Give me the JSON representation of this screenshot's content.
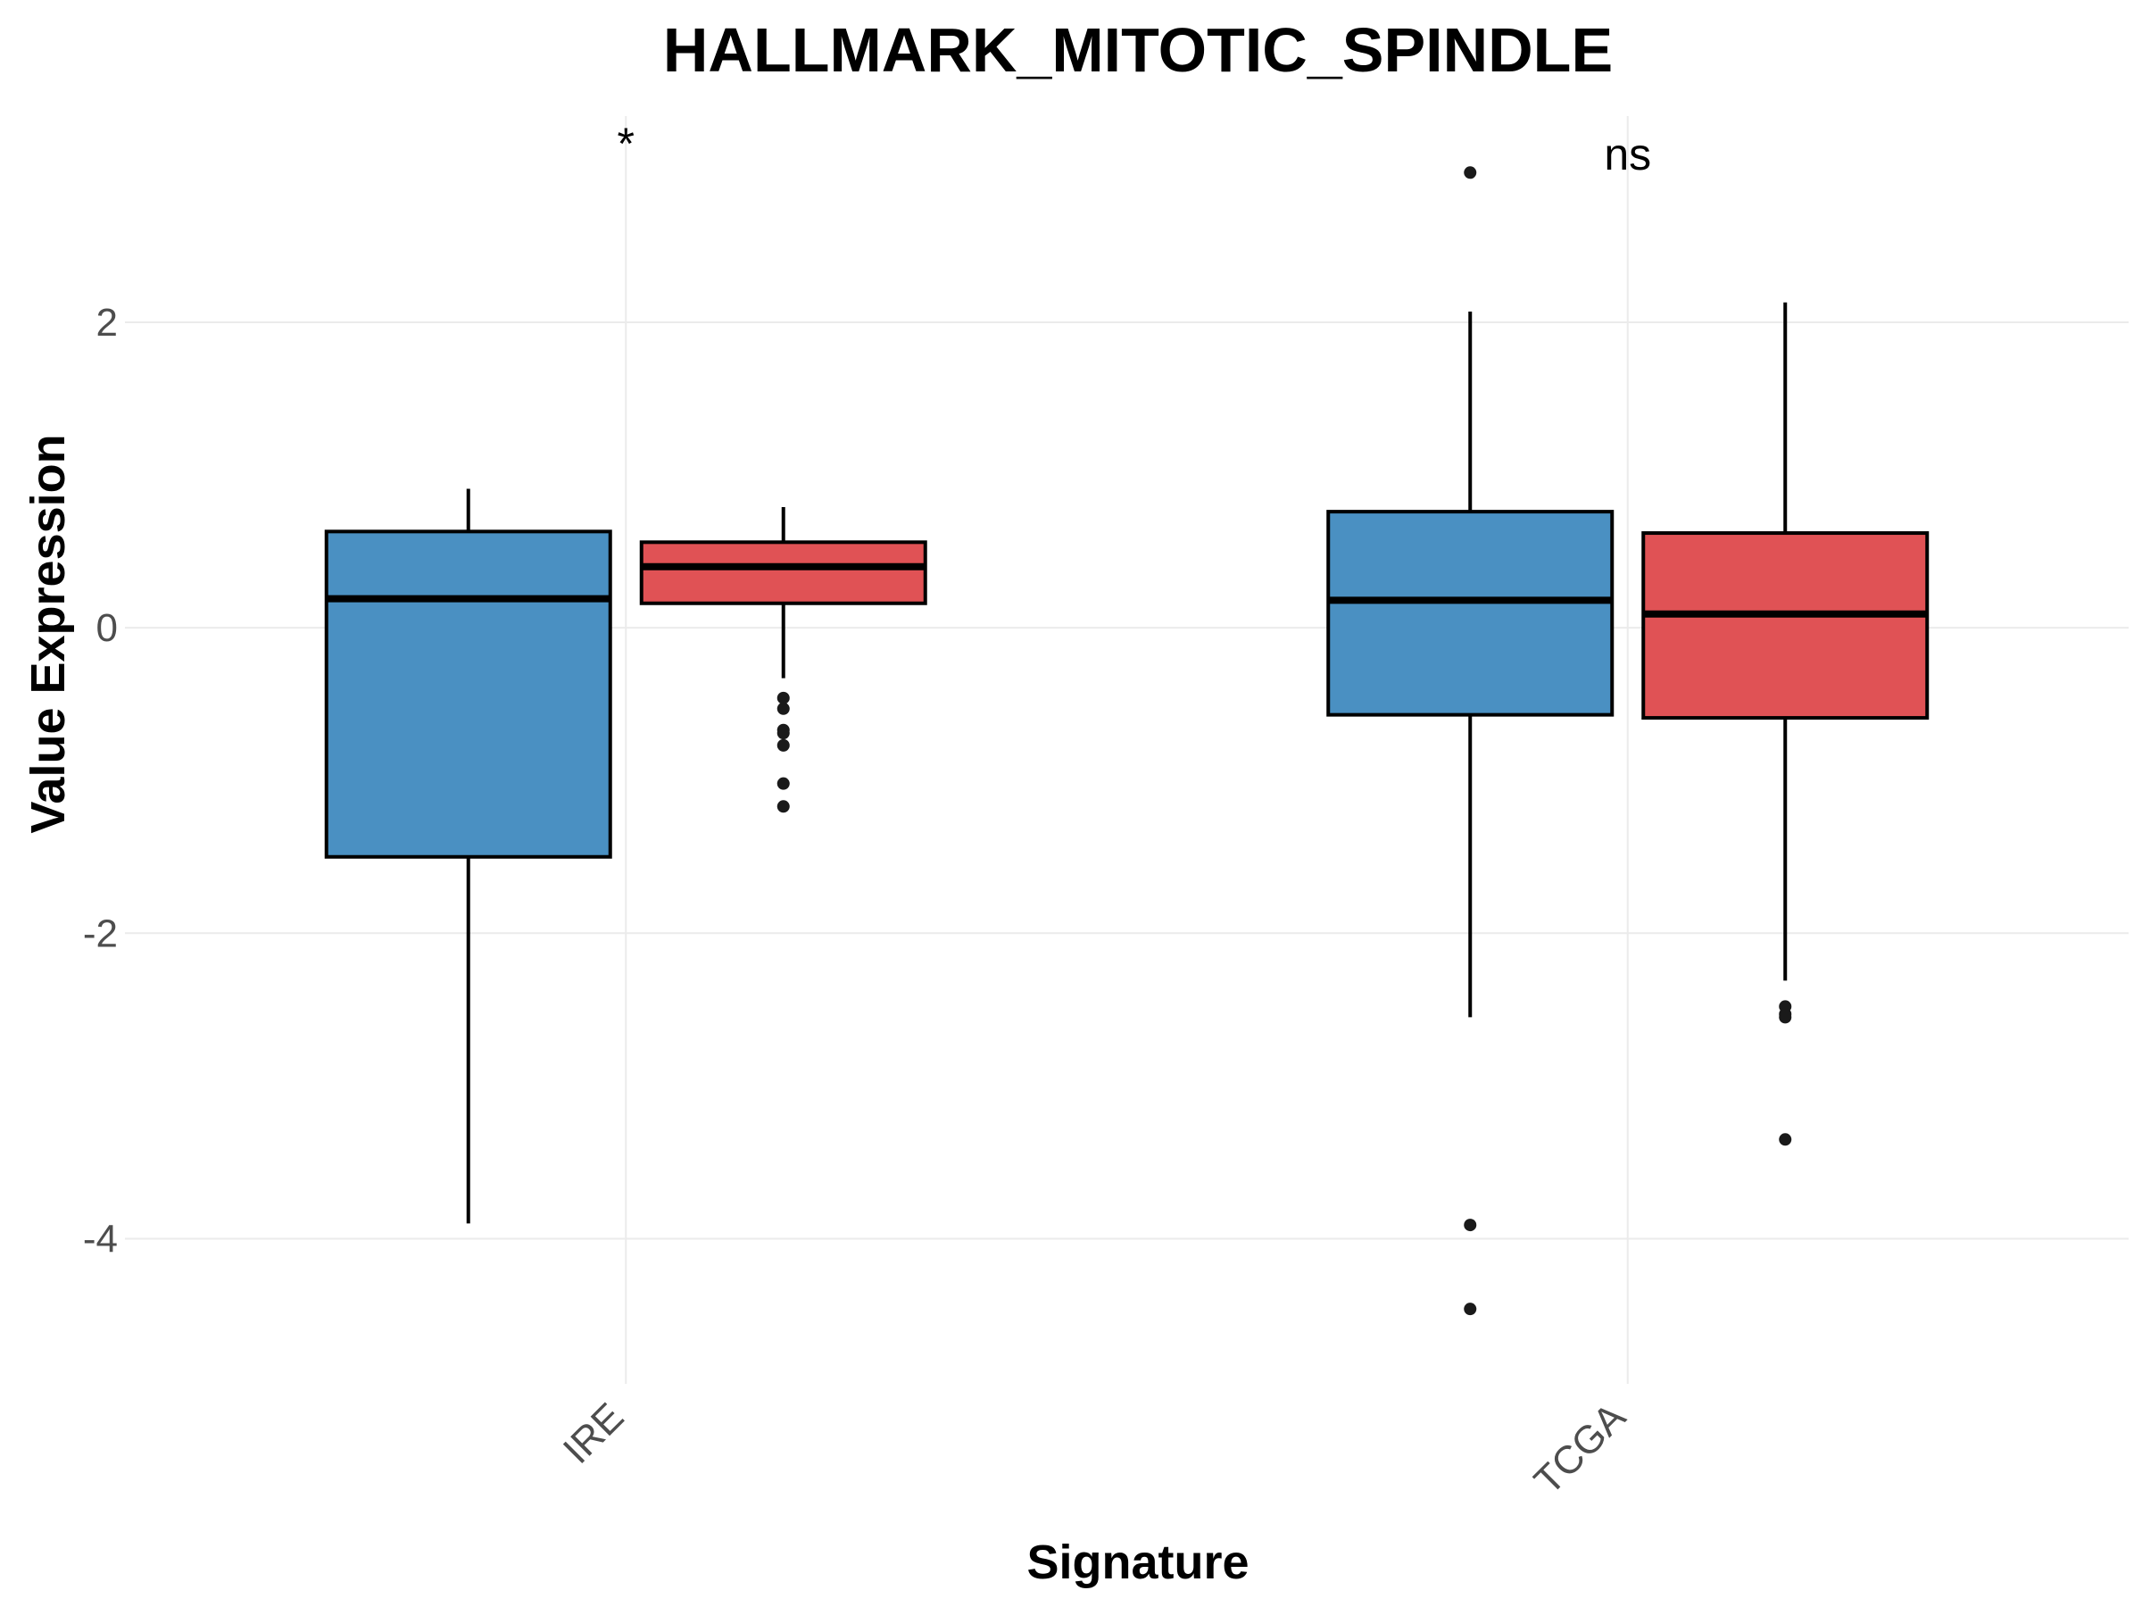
{
  "chart_data": {
    "type": "box",
    "title": "HALLMARK_MITOTIC_SPINDLE",
    "xlabel": "Signature",
    "ylabel": "Value Expression",
    "ylim": [
      -4.95,
      3.35
    ],
    "yticks": [
      -4,
      -2,
      0,
      2
    ],
    "categories": [
      "IRE",
      "TCGA"
    ],
    "grid": true,
    "legend": "none",
    "colors": {
      "blue": "#4a90c2",
      "red": "#e05255"
    },
    "boxes": [
      {
        "category": "IRE",
        "color": "blue",
        "whisker_low": -3.9,
        "q1": -1.5,
        "median": 0.19,
        "q3": 0.63,
        "whisker_high": 0.91,
        "outliers": []
      },
      {
        "category": "IRE",
        "color": "red",
        "whisker_low": -0.33,
        "q1": 0.16,
        "median": 0.4,
        "q3": 0.56,
        "whisker_high": 0.79,
        "outliers": [
          -0.46,
          -0.53,
          -0.67,
          -0.69,
          -0.77,
          -1.02,
          -1.17
        ]
      },
      {
        "category": "TCGA",
        "color": "blue",
        "whisker_low": -2.55,
        "q1": -0.57,
        "median": 0.18,
        "q3": 0.76,
        "whisker_high": 2.07,
        "outliers": [
          2.98,
          -3.91,
          -4.46
        ]
      },
      {
        "category": "TCGA",
        "color": "red",
        "whisker_low": -2.31,
        "q1": -0.59,
        "median": 0.09,
        "q3": 0.62,
        "whisker_high": 2.13,
        "outliers": [
          -2.48,
          -2.53,
          -2.55,
          -3.35
        ]
      }
    ],
    "annotations": [
      {
        "category": "IRE",
        "text": "*"
      },
      {
        "category": "TCGA",
        "text": "ns"
      }
    ]
  }
}
